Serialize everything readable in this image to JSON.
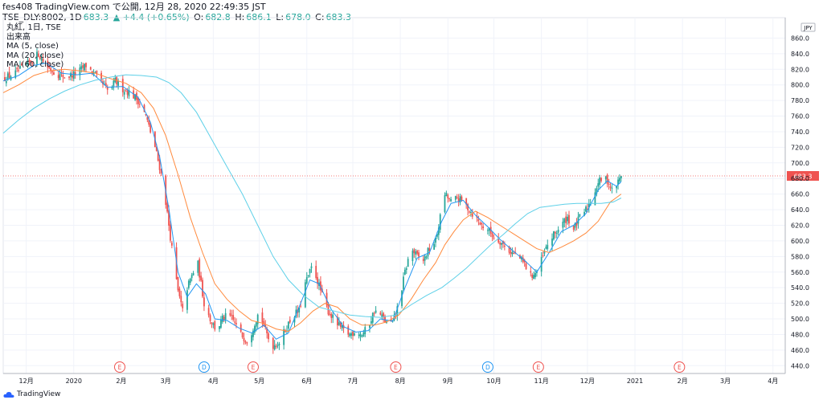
{
  "header": {
    "line1": "fes408 TradingView.com で公開, 12月 28, 2020 22:49:35 JST",
    "symbol": "TSE_DLY:8002, 1D",
    "last": "683.3",
    "change": "▲ +4.4 (+0.65%)",
    "o_label": "O:",
    "o": "682.8",
    "h_label": "H:",
    "h": "686.1",
    "l_label": "L:",
    "l": "678.0",
    "c_label": "C:",
    "c": "683.3"
  },
  "legend": {
    "title": "丸紅, 1日, TSE",
    "volume": "出来高",
    "ma5": "MA (5, close)",
    "ma20": "MA (20, close)",
    "ma60": "MA (60, close)"
  },
  "footer": {
    "brand": "TradingView"
  },
  "colors": {
    "up": "#26a69a",
    "down": "#ef5350",
    "ma5": "#2196f3",
    "ma20": "#ff8a3d",
    "ma60": "#5ed0e8",
    "grid": "#f0f3fa",
    "price_line": "#ef5350"
  },
  "chart_data": {
    "type": "candlestick",
    "currency": "JPY",
    "current_price": 683.3,
    "ylim": [
      430,
      880
    ],
    "y_ticks": [
      440,
      460,
      480,
      500,
      520,
      540,
      560,
      580,
      600,
      620,
      640,
      660,
      680,
      700,
      720,
      740,
      760,
      780,
      800,
      820,
      840,
      860
    ],
    "x_ticks": [
      {
        "label": "12月",
        "day": -21
      },
      {
        "label": "2020",
        "day": 10
      },
      {
        "label": "2月",
        "day": 41
      },
      {
        "label": "3月",
        "day": 70
      },
      {
        "label": "4月",
        "day": 101
      },
      {
        "label": "5月",
        "day": 131
      },
      {
        "label": "6月",
        "day": 162
      },
      {
        "label": "7月",
        "day": 192
      },
      {
        "label": "8月",
        "day": 223
      },
      {
        "label": "9月",
        "day": 254
      },
      {
        "label": "10月",
        "day": 284
      },
      {
        "label": "11月",
        "day": 315
      },
      {
        "label": "12月",
        "day": 345
      },
      {
        "label": "2021",
        "day": 376
      },
      {
        "label": "2月",
        "day": 407
      },
      {
        "label": "3月",
        "day": 435
      },
      {
        "label": "4月",
        "day": 466
      }
    ],
    "events": [
      {
        "label": "E",
        "day": 40,
        "color": "#ef5350"
      },
      {
        "label": "D",
        "day": 95,
        "color": "#2196f3"
      },
      {
        "label": "E",
        "day": 127,
        "color": "#ef5350"
      },
      {
        "label": "E",
        "day": 220,
        "color": "#ef5350"
      },
      {
        "label": "D",
        "day": 280,
        "color": "#2196f3"
      },
      {
        "label": "E",
        "day": 313,
        "color": "#ef5350"
      },
      {
        "label": "E",
        "day": 405,
        "color": "#ef5350"
      }
    ],
    "close_path": [
      [
        -36,
        808
      ],
      [
        -28,
        815
      ],
      [
        -18,
        830
      ],
      [
        -13,
        840
      ],
      [
        -8,
        825
      ],
      [
        -2,
        815
      ],
      [
        5,
        810
      ],
      [
        12,
        815
      ],
      [
        18,
        825
      ],
      [
        24,
        812
      ],
      [
        29,
        800
      ],
      [
        33,
        790
      ],
      [
        37,
        805
      ],
      [
        42,
        795
      ],
      [
        47,
        790
      ],
      [
        52,
        780
      ],
      [
        57,
        760
      ],
      [
        60,
        740
      ],
      [
        63,
        720
      ],
      [
        66,
        695
      ],
      [
        69,
        665
      ],
      [
        72,
        620
      ],
      [
        75,
        575
      ],
      [
        78,
        535
      ],
      [
        81,
        510
      ],
      [
        84,
        540
      ],
      [
        88,
        560
      ],
      [
        91,
        570
      ],
      [
        95,
        520
      ],
      [
        99,
        500
      ],
      [
        103,
        485
      ],
      [
        107,
        500
      ],
      [
        111,
        505
      ],
      [
        115,
        495
      ],
      [
        119,
        480
      ],
      [
        124,
        470
      ],
      [
        127,
        490
      ],
      [
        131,
        510
      ],
      [
        135,
        485
      ],
      [
        139,
        465
      ],
      [
        144,
        470
      ],
      [
        149,
        490
      ],
      [
        153,
        505
      ],
      [
        157,
        510
      ],
      [
        161,
        545
      ],
      [
        165,
        565
      ],
      [
        168,
        555
      ],
      [
        172,
        530
      ],
      [
        176,
        510
      ],
      [
        181,
        495
      ],
      [
        186,
        485
      ],
      [
        190,
        480
      ],
      [
        194,
        485
      ],
      [
        198,
        480
      ],
      [
        202,
        490
      ],
      [
        206,
        510
      ],
      [
        210,
        505
      ],
      [
        214,
        495
      ],
      [
        218,
        495
      ],
      [
        222,
        520
      ],
      [
        226,
        560
      ],
      [
        230,
        590
      ],
      [
        234,
        580
      ],
      [
        238,
        575
      ],
      [
        242,
        590
      ],
      [
        246,
        600
      ],
      [
        249,
        630
      ],
      [
        252,
        660
      ],
      [
        256,
        650
      ],
      [
        260,
        655
      ],
      [
        264,
        650
      ],
      [
        268,
        640
      ],
      [
        272,
        630
      ],
      [
        276,
        620
      ],
      [
        280,
        615
      ],
      [
        284,
        605
      ],
      [
        288,
        600
      ],
      [
        292,
        590
      ],
      [
        296,
        585
      ],
      [
        300,
        580
      ],
      [
        304,
        570
      ],
      [
        308,
        555
      ],
      [
        312,
        560
      ],
      [
        316,
        580
      ],
      [
        320,
        600
      ],
      [
        324,
        610
      ],
      [
        328,
        620
      ],
      [
        332,
        630
      ],
      [
        336,
        615
      ],
      [
        340,
        630
      ],
      [
        344,
        640
      ],
      [
        348,
        655
      ],
      [
        352,
        675
      ],
      [
        355,
        680
      ],
      [
        358,
        678
      ],
      [
        361,
        665
      ],
      [
        364,
        672
      ],
      [
        367,
        683.3
      ]
    ],
    "ma_series": [
      {
        "name": "MA (5, close)",
        "color": "#2196f3",
        "points": [
          [
            -36,
            805
          ],
          [
            -26,
            812
          ],
          [
            -16,
            825
          ],
          [
            -8,
            828
          ],
          [
            2,
            815
          ],
          [
            12,
            813
          ],
          [
            22,
            815
          ],
          [
            32,
            797
          ],
          [
            42,
            798
          ],
          [
            52,
            784
          ],
          [
            60,
            752
          ],
          [
            66,
            708
          ],
          [
            72,
            642
          ],
          [
            78,
            560
          ],
          [
            84,
            528
          ],
          [
            90,
            545
          ],
          [
            96,
            532
          ],
          [
            102,
            500
          ],
          [
            110,
            498
          ],
          [
            118,
            488
          ],
          [
            126,
            482
          ],
          [
            134,
            492
          ],
          [
            142,
            474
          ],
          [
            150,
            482
          ],
          [
            158,
            520
          ],
          [
            164,
            550
          ],
          [
            170,
            545
          ],
          [
            178,
            512
          ],
          [
            186,
            490
          ],
          [
            194,
            483
          ],
          [
            202,
            485
          ],
          [
            210,
            500
          ],
          [
            218,
            497
          ],
          [
            226,
            540
          ],
          [
            234,
            578
          ],
          [
            242,
            585
          ],
          [
            250,
            625
          ],
          [
            256,
            648
          ],
          [
            264,
            652
          ],
          [
            272,
            633
          ],
          [
            280,
            618
          ],
          [
            288,
            602
          ],
          [
            296,
            588
          ],
          [
            304,
            575
          ],
          [
            312,
            560
          ],
          [
            320,
            585
          ],
          [
            328,
            612
          ],
          [
            336,
            620
          ],
          [
            344,
            635
          ],
          [
            352,
            665
          ],
          [
            358,
            677
          ],
          [
            364,
            670
          ],
          [
            367,
            676
          ]
        ]
      },
      {
        "name": "MA (20, close)",
        "color": "#ff8a3d",
        "points": [
          [
            -36,
            790
          ],
          [
            -26,
            800
          ],
          [
            -16,
            812
          ],
          [
            -6,
            818
          ],
          [
            4,
            820
          ],
          [
            14,
            818
          ],
          [
            24,
            815
          ],
          [
            34,
            808
          ],
          [
            44,
            802
          ],
          [
            54,
            790
          ],
          [
            62,
            770
          ],
          [
            70,
            735
          ],
          [
            78,
            685
          ],
          [
            86,
            630
          ],
          [
            94,
            585
          ],
          [
            102,
            545
          ],
          [
            110,
            525
          ],
          [
            118,
            510
          ],
          [
            126,
            498
          ],
          [
            134,
            494
          ],
          [
            142,
            487
          ],
          [
            150,
            484
          ],
          [
            158,
            495
          ],
          [
            166,
            510
          ],
          [
            174,
            520
          ],
          [
            182,
            515
          ],
          [
            190,
            500
          ],
          [
            198,
            492
          ],
          [
            206,
            492
          ],
          [
            214,
            496
          ],
          [
            222,
            505
          ],
          [
            230,
            525
          ],
          [
            238,
            550
          ],
          [
            246,
            572
          ],
          [
            252,
            595
          ],
          [
            258,
            612
          ],
          [
            264,
            627
          ],
          [
            272,
            638
          ],
          [
            280,
            630
          ],
          [
            288,
            620
          ],
          [
            296,
            610
          ],
          [
            304,
            600
          ],
          [
            312,
            590
          ],
          [
            320,
            585
          ],
          [
            328,
            592
          ],
          [
            336,
            600
          ],
          [
            344,
            610
          ],
          [
            352,
            625
          ],
          [
            360,
            650
          ],
          [
            367,
            660
          ]
        ]
      },
      {
        "name": "MA (60, close)",
        "color": "#5ed0e8",
        "points": [
          [
            -36,
            738
          ],
          [
            -26,
            755
          ],
          [
            -16,
            770
          ],
          [
            -6,
            782
          ],
          [
            4,
            792
          ],
          [
            14,
            800
          ],
          [
            24,
            806
          ],
          [
            34,
            810
          ],
          [
            44,
            813
          ],
          [
            54,
            812
          ],
          [
            64,
            810
          ],
          [
            72,
            803
          ],
          [
            80,
            790
          ],
          [
            90,
            765
          ],
          [
            100,
            730
          ],
          [
            110,
            695
          ],
          [
            120,
            660
          ],
          [
            130,
            620
          ],
          [
            140,
            580
          ],
          [
            150,
            550
          ],
          [
            160,
            530
          ],
          [
            170,
            515
          ],
          [
            180,
            510
          ],
          [
            190,
            505
          ],
          [
            200,
            503
          ],
          [
            210,
            502
          ],
          [
            220,
            505
          ],
          [
            230,
            518
          ],
          [
            240,
            530
          ],
          [
            250,
            540
          ],
          [
            258,
            552
          ],
          [
            266,
            565
          ],
          [
            274,
            580
          ],
          [
            282,
            595
          ],
          [
            290,
            608
          ],
          [
            298,
            622
          ],
          [
            306,
            635
          ],
          [
            314,
            643
          ],
          [
            322,
            645
          ],
          [
            330,
            647
          ],
          [
            338,
            648
          ],
          [
            346,
            648
          ],
          [
            354,
            648
          ],
          [
            362,
            650
          ],
          [
            367,
            655
          ]
        ]
      }
    ]
  }
}
